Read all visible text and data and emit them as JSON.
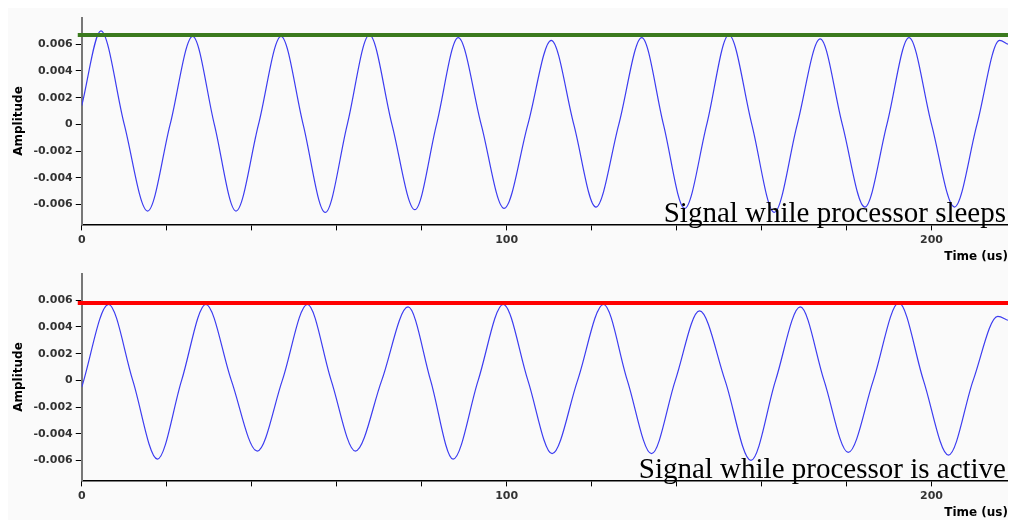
{
  "chart_data": [
    {
      "type": "line",
      "xlabel": "Time (us)",
      "ylabel": "Amplitude",
      "annotations": [
        "Signal while processor sleeps"
      ],
      "xlim": [
        0,
        218
      ],
      "xticks": [
        0,
        {
          "value": 20,
          "label": null
        },
        {
          "value": 40,
          "label": null
        },
        {
          "value": 60,
          "label": null
        },
        {
          "value": 80,
          "label": null
        },
        100,
        {
          "value": 120,
          "label": null
        },
        {
          "value": 140,
          "label": null
        },
        {
          "value": 160,
          "label": null
        },
        {
          "value": 180,
          "label": null
        },
        200
      ],
      "ylim": [
        -0.0075,
        0.008
      ],
      "yticks": [
        -0.006,
        -0.004,
        -0.002,
        0,
        0.002,
        0.004,
        0.006
      ],
      "grid": false,
      "marker": "none",
      "ref_lines": [
        {
          "axis": "y",
          "value": 0.0067,
          "color": "#3b7a1e"
        }
      ],
      "x": [
        0,
        4.5,
        10,
        15.5,
        20.8,
        26.1,
        31.2,
        36.3,
        41.6,
        46.9,
        52.1,
        57.3,
        62.5,
        67.7,
        73,
        78.4,
        83.5,
        88.6,
        94,
        99.4,
        105,
        110.5,
        115.8,
        121,
        126.4,
        131.8,
        136.9,
        141.9,
        147.1,
        152.3,
        157.7,
        163,
        168.4,
        173.8,
        179,
        184.3,
        189.5,
        194.7,
        200,
        205.4,
        210.7,
        216,
        218
      ],
      "series": [
        {
          "color": "#3c3cf0",
          "values": [
            0.0014,
            0.007,
            0,
            -0.0065,
            0,
            0.0066,
            0,
            -0.0065,
            0,
            0.0066,
            0,
            -0.0066,
            0,
            0.0067,
            0,
            -0.0064,
            0,
            0.0065,
            0,
            -0.0063,
            0,
            0.0063,
            0,
            -0.0062,
            0,
            0.0065,
            0,
            -0.0063,
            0,
            0.0067,
            0,
            -0.0066,
            0,
            0.0064,
            0,
            -0.0062,
            0,
            0.0065,
            0,
            -0.0062,
            0,
            0.0063,
            0.006
          ]
        }
      ]
    },
    {
      "type": "line",
      "xlabel": "Time (us)",
      "ylabel": "Amplitude",
      "annotations": [
        "Signal while processor is active"
      ],
      "xlim": [
        0,
        218
      ],
      "xticks": [
        0,
        {
          "value": 20,
          "label": null
        },
        {
          "value": 40,
          "label": null
        },
        {
          "value": 60,
          "label": null
        },
        {
          "value": 80,
          "label": null
        },
        100,
        {
          "value": 120,
          "label": null
        },
        {
          "value": 140,
          "label": null
        },
        {
          "value": 160,
          "label": null
        },
        {
          "value": 180,
          "label": null
        },
        200
      ],
      "ylim": [
        -0.0075,
        0.008
      ],
      "yticks": [
        -0.006,
        -0.004,
        -0.002,
        0,
        0.002,
        0.004,
        0.006
      ],
      "grid": false,
      "marker": "none",
      "ref_lines": [
        {
          "axis": "y",
          "value": 0.0058,
          "color": "#ff0000"
        }
      ],
      "x": [
        0,
        6.3,
        12,
        17.8,
        23.5,
        29.2,
        35.2,
        41.3,
        47.2,
        53.1,
        58.7,
        64.4,
        70.6,
        76.8,
        82.1,
        87.4,
        93.3,
        99.2,
        105,
        110.7,
        116.7,
        122.8,
        128.4,
        134.1,
        139.7,
        145.4,
        151.4,
        157.5,
        163.3,
        169.1,
        174.7,
        180.4,
        186.3,
        192.3,
        198.1,
        204,
        209.8,
        215.6,
        218
      ],
      "series": [
        {
          "color": "#3c3cf0",
          "values": [
            -0.0005,
            0.0057,
            0,
            -0.0059,
            0,
            0.0057,
            0,
            -0.0053,
            0,
            0.0057,
            0,
            -0.0053,
            0,
            0.0055,
            0,
            -0.0059,
            0,
            0.0057,
            0,
            -0.0055,
            0,
            0.0057,
            0,
            -0.0055,
            0,
            0.0052,
            0,
            -0.006,
            0,
            0.0055,
            0,
            -0.0054,
            0,
            0.0058,
            0,
            -0.0056,
            0,
            0.0048,
            0.0045
          ]
        }
      ]
    }
  ]
}
